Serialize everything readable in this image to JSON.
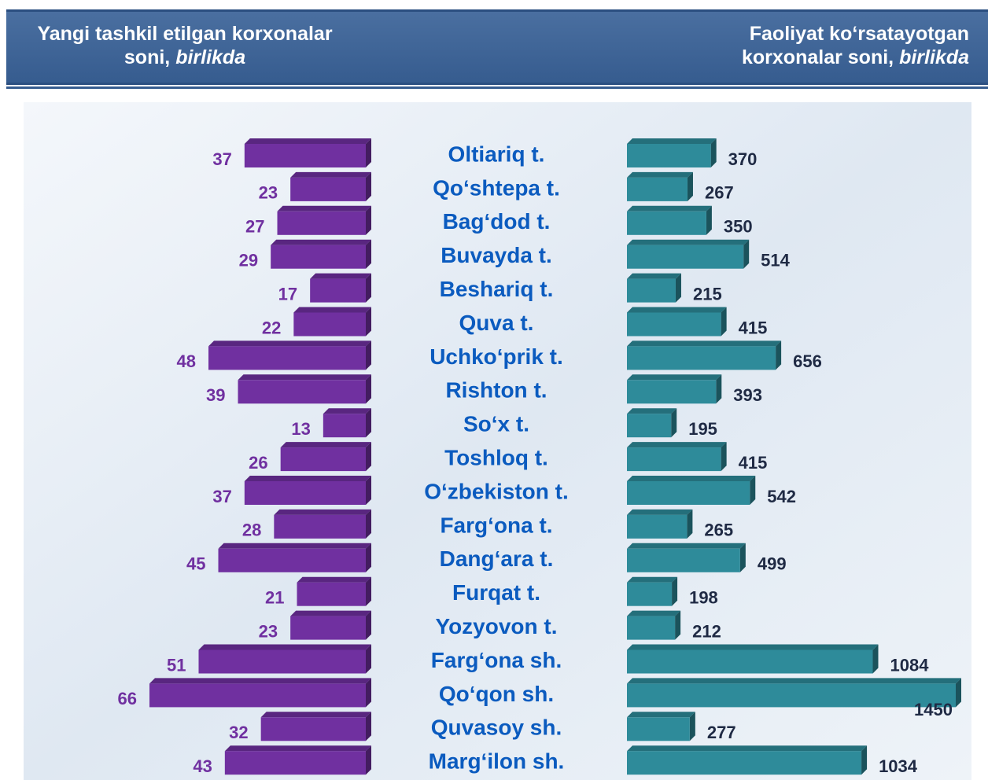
{
  "chart_data": {
    "type": "bar",
    "categories": [
      "Oltiariq t.",
      "Qo‘shtepa t.",
      "Bag‘dod t.",
      "Buvayda t.",
      "Beshariq t.",
      "Quva t.",
      "Uchko‘prik t.",
      "Rishton t.",
      "So‘x t.",
      "Toshloq t.",
      "O‘zbekiston t.",
      "Farg‘ona t.",
      "Dang‘ara t.",
      "Furqat t.",
      "Yozyovon t.",
      "Farg‘ona sh.",
      "Qo‘qon sh.",
      "Quvasoy sh.",
      "Marg‘ilon sh."
    ],
    "series": [
      {
        "name": "Yangi tashkil etilgan korxonalar soni,",
        "unit": "birlikda",
        "color": "#7030a0",
        "values": [
          37,
          23,
          27,
          29,
          17,
          22,
          48,
          39,
          13,
          26,
          37,
          28,
          45,
          21,
          23,
          51,
          66,
          32,
          43
        ]
      },
      {
        "name": "Faoliyat ko‘rsatayotgan korxonalar soni,",
        "unit": "birlikda",
        "color": "#2e8b9a",
        "values": [
          370,
          267,
          350,
          514,
          215,
          415,
          656,
          393,
          195,
          415,
          542,
          265,
          499,
          198,
          212,
          1084,
          1450,
          277,
          1034
        ]
      }
    ]
  }
}
